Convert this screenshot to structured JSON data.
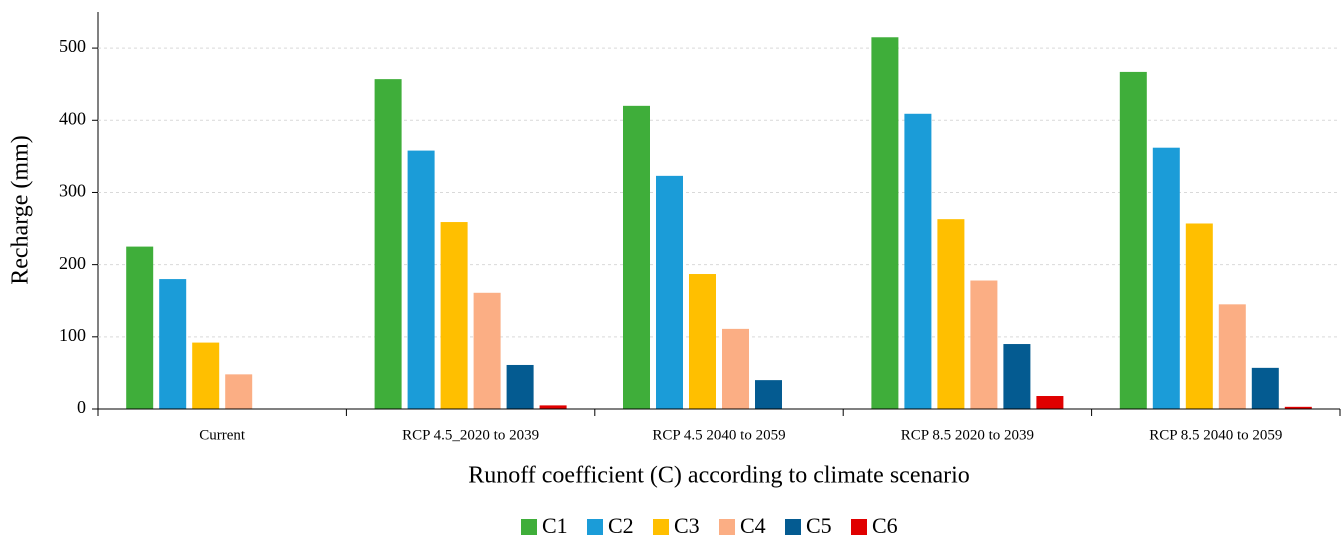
{
  "chart_data": {
    "type": "bar",
    "x_label": "Runoff coefficient (C) according to climate scenario",
    "y_label": "Recharge (mm)",
    "categories": [
      "Current",
      "RCP 4.5_2020 to 2039",
      "RCP 4.5 2040 to 2059",
      "RCP 8.5 2020 to 2039",
      "RCP 8.5 2040 to 2059"
    ],
    "series": [
      {
        "name": "C1",
        "color": "#3fae3a",
        "values": [
          225,
          457,
          420,
          515,
          467
        ]
      },
      {
        "name": "C2",
        "color": "#1b9cd8",
        "values": [
          180,
          358,
          323,
          409,
          362
        ]
      },
      {
        "name": "C3",
        "color": "#ffbf00",
        "values": [
          92,
          259,
          187,
          263,
          257
        ]
      },
      {
        "name": "C4",
        "color": "#fbae84",
        "values": [
          48,
          161,
          111,
          178,
          145
        ]
      },
      {
        "name": "C5",
        "color": "#045b91",
        "values": [
          null,
          61,
          40,
          90,
          57
        ]
      },
      {
        "name": "C6",
        "color": "#e00000",
        "values": [
          null,
          5,
          null,
          18,
          3
        ]
      }
    ],
    "ylim": [
      0,
      550
    ],
    "yticks": [
      0,
      100,
      200,
      300,
      400,
      500
    ],
    "grid": true,
    "legend": "bottom"
  }
}
